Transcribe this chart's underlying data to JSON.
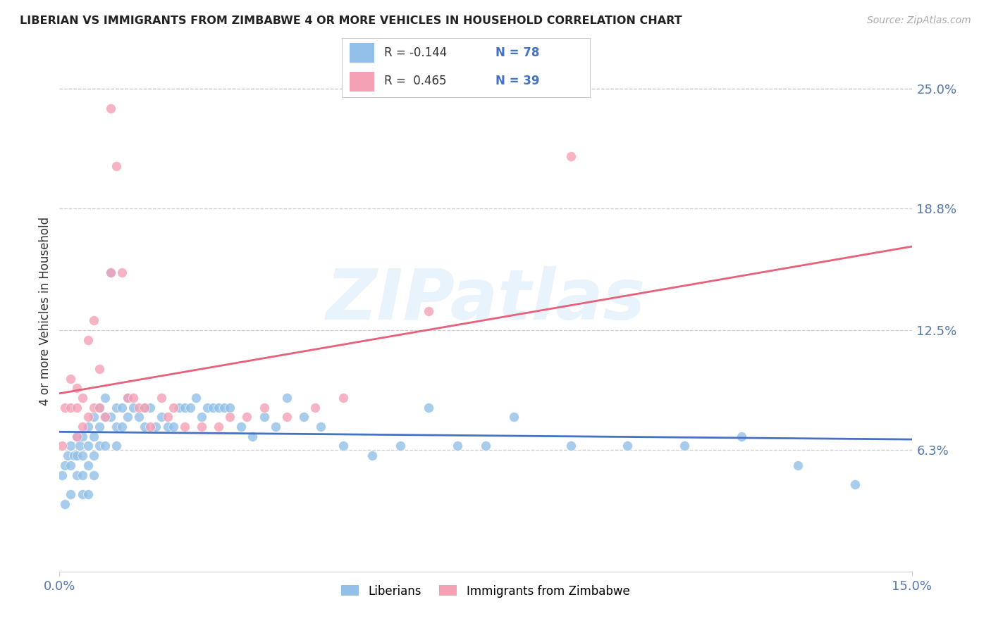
{
  "title": "LIBERIAN VS IMMIGRANTS FROM ZIMBABWE 4 OR MORE VEHICLES IN HOUSEHOLD CORRELATION CHART",
  "source": "Source: ZipAtlas.com",
  "ylabel_label": "4 or more Vehicles in Household",
  "xmin": 0.0,
  "xmax": 0.15,
  "ymin": 0.0,
  "ymax": 0.27,
  "ytick_positions": [
    0.063,
    0.125,
    0.188,
    0.25
  ],
  "ytick_labels": [
    "6.3%",
    "12.5%",
    "18.8%",
    "25.0%"
  ],
  "xtick_positions": [
    0.0,
    0.15
  ],
  "xtick_labels": [
    "0.0%",
    "15.0%"
  ],
  "liberian_R": -0.144,
  "liberian_N": 78,
  "zimbabwe_R": 0.465,
  "zimbabwe_N": 39,
  "liberian_color": "#92c0e8",
  "zimbabwe_color": "#f4a0b5",
  "liberian_line_color": "#4472c4",
  "zimbabwe_line_color": "#e8607a",
  "watermark_text": "ZIPatlas",
  "liberian_x": [
    0.0005,
    0.001,
    0.001,
    0.0015,
    0.002,
    0.002,
    0.002,
    0.0025,
    0.003,
    0.003,
    0.003,
    0.0035,
    0.004,
    0.004,
    0.004,
    0.004,
    0.005,
    0.005,
    0.005,
    0.005,
    0.006,
    0.006,
    0.006,
    0.006,
    0.007,
    0.007,
    0.007,
    0.008,
    0.008,
    0.008,
    0.009,
    0.009,
    0.01,
    0.01,
    0.01,
    0.011,
    0.011,
    0.012,
    0.012,
    0.013,
    0.014,
    0.015,
    0.015,
    0.016,
    0.017,
    0.018,
    0.019,
    0.02,
    0.021,
    0.022,
    0.023,
    0.024,
    0.025,
    0.026,
    0.027,
    0.028,
    0.029,
    0.03,
    0.032,
    0.034,
    0.036,
    0.038,
    0.04,
    0.043,
    0.046,
    0.05,
    0.055,
    0.06,
    0.065,
    0.07,
    0.075,
    0.08,
    0.09,
    0.1,
    0.11,
    0.12,
    0.13,
    0.14
  ],
  "liberian_y": [
    0.05,
    0.055,
    0.035,
    0.06,
    0.065,
    0.055,
    0.04,
    0.06,
    0.07,
    0.06,
    0.05,
    0.065,
    0.07,
    0.06,
    0.05,
    0.04,
    0.075,
    0.065,
    0.055,
    0.04,
    0.08,
    0.07,
    0.06,
    0.05,
    0.085,
    0.075,
    0.065,
    0.09,
    0.08,
    0.065,
    0.155,
    0.08,
    0.085,
    0.075,
    0.065,
    0.085,
    0.075,
    0.09,
    0.08,
    0.085,
    0.08,
    0.085,
    0.075,
    0.085,
    0.075,
    0.08,
    0.075,
    0.075,
    0.085,
    0.085,
    0.085,
    0.09,
    0.08,
    0.085,
    0.085,
    0.085,
    0.085,
    0.085,
    0.075,
    0.07,
    0.08,
    0.075,
    0.09,
    0.08,
    0.075,
    0.065,
    0.06,
    0.065,
    0.085,
    0.065,
    0.065,
    0.08,
    0.065,
    0.065,
    0.065,
    0.07,
    0.055,
    0.045
  ],
  "zimbabwe_x": [
    0.0005,
    0.001,
    0.002,
    0.002,
    0.003,
    0.003,
    0.003,
    0.004,
    0.004,
    0.005,
    0.005,
    0.006,
    0.006,
    0.007,
    0.007,
    0.008,
    0.009,
    0.009,
    0.01,
    0.011,
    0.012,
    0.013,
    0.014,
    0.015,
    0.016,
    0.018,
    0.019,
    0.02,
    0.022,
    0.025,
    0.028,
    0.03,
    0.033,
    0.036,
    0.04,
    0.045,
    0.05,
    0.065,
    0.09
  ],
  "zimbabwe_y": [
    0.065,
    0.085,
    0.1,
    0.085,
    0.095,
    0.085,
    0.07,
    0.09,
    0.075,
    0.12,
    0.08,
    0.085,
    0.13,
    0.105,
    0.085,
    0.08,
    0.24,
    0.155,
    0.21,
    0.155,
    0.09,
    0.09,
    0.085,
    0.085,
    0.075,
    0.09,
    0.08,
    0.085,
    0.075,
    0.075,
    0.075,
    0.08,
    0.08,
    0.085,
    0.08,
    0.085,
    0.09,
    0.135,
    0.215
  ]
}
